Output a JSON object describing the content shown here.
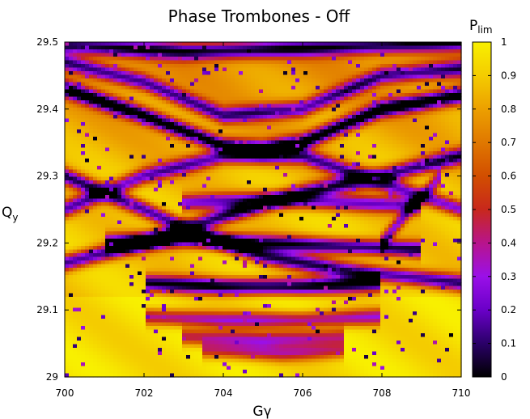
{
  "chart_data": {
    "type": "heatmap",
    "title": "Phase Trombones - Off",
    "xlabel": "Gγ",
    "ylabel": {
      "main": "Q",
      "sub": "y"
    },
    "xlim": [
      700,
      710
    ],
    "ylim": [
      29.0,
      29.5
    ],
    "x_ticks": [
      "700",
      "702",
      "704",
      "706",
      "708",
      "710"
    ],
    "y_ticks": [
      "29",
      "29.1",
      "29.2",
      "29.3",
      "29.4",
      "29.5"
    ],
    "colorbar": {
      "label": {
        "main": "P",
        "sub": "lim"
      },
      "range": [
        0,
        1
      ],
      "ticks": [
        "0",
        "0.1",
        "0.2",
        "0.3",
        "0.4",
        "0.5",
        "0.6",
        "0.7",
        "0.8",
        "0.9",
        "1"
      ],
      "palette": [
        "#000000",
        "#2a0068",
        "#6a00c8",
        "#9a10e8",
        "#b8148c",
        "#c8281c",
        "#d24e00",
        "#e07800",
        "#eca000",
        "#f4cc00",
        "#f8f000"
      ]
    },
    "grid": false,
    "legend": "colorbar-right",
    "background_value": 0.9,
    "resonance_lines": [
      {
        "name": "resonance-upper-arc",
        "depth": 0.95,
        "points": [
          [
            700,
            29.43
          ],
          [
            702,
            29.39
          ],
          [
            704,
            29.345
          ],
          [
            705,
            29.34
          ],
          [
            706,
            29.35
          ],
          [
            708,
            29.4
          ],
          [
            710,
            29.42
          ]
        ]
      },
      {
        "name": "resonance-upper-arc-2",
        "depth": 0.7,
        "points": [
          [
            700,
            29.47
          ],
          [
            702,
            29.44
          ],
          [
            704,
            29.39
          ],
          [
            706,
            29.4
          ],
          [
            708,
            29.45
          ],
          [
            710,
            29.46
          ]
        ]
      },
      {
        "name": "resonance-top-band",
        "depth": 0.75,
        "points": [
          [
            700,
            29.495
          ],
          [
            703,
            29.485
          ],
          [
            706,
            29.49
          ],
          [
            710,
            29.5
          ]
        ]
      },
      {
        "name": "resonance-crossing-a",
        "depth": 0.8,
        "points": [
          [
            700,
            29.3
          ],
          [
            702,
            29.25
          ],
          [
            703.5,
            29.21
          ],
          [
            705,
            29.18
          ],
          [
            707,
            29.16
          ],
          [
            710,
            29.14
          ]
        ]
      },
      {
        "name": "resonance-crossing-b",
        "depth": 0.8,
        "points": [
          [
            700,
            29.17
          ],
          [
            702,
            29.2
          ],
          [
            704,
            29.24
          ],
          [
            706,
            29.275
          ],
          [
            708,
            29.3
          ],
          [
            710,
            29.33
          ]
        ]
      },
      {
        "name": "resonance-crossing-c",
        "depth": 0.7,
        "points": [
          [
            700,
            29.25
          ],
          [
            702,
            29.3
          ],
          [
            704,
            29.33
          ],
          [
            706,
            29.33
          ],
          [
            708,
            29.29
          ],
          [
            710,
            29.25
          ]
        ]
      },
      {
        "name": "resonance-mid-band-1",
        "depth": 0.85,
        "points": [
          [
            701,
            29.2
          ],
          [
            703,
            29.205
          ],
          [
            705,
            29.2
          ],
          [
            707,
            29.195
          ],
          [
            709,
            29.19
          ]
        ]
      },
      {
        "name": "resonance-mid-band-2",
        "depth": 0.9,
        "points": [
          [
            702,
            29.14
          ],
          [
            704,
            29.135
          ],
          [
            706,
            29.135
          ],
          [
            708,
            29.14
          ]
        ]
      },
      {
        "name": "resonance-mid-band-3",
        "depth": 0.65,
        "points": [
          [
            703,
            29.26
          ],
          [
            705,
            29.265
          ],
          [
            707,
            29.26
          ],
          [
            709,
            29.255
          ]
        ]
      },
      {
        "name": "resonance-lower-band-1",
        "depth": 0.6,
        "points": [
          [
            702,
            29.09
          ],
          [
            704,
            29.085
          ],
          [
            706,
            29.085
          ],
          [
            708,
            29.09
          ]
        ]
      },
      {
        "name": "resonance-lower-band-2",
        "depth": 0.55,
        "points": [
          [
            703,
            29.06
          ],
          [
            705,
            29.055
          ],
          [
            707,
            29.06
          ]
        ]
      },
      {
        "name": "resonance-lower-band-3",
        "depth": 0.5,
        "points": [
          [
            703.5,
            29.04
          ],
          [
            705.5,
            29.035
          ],
          [
            707,
            29.04
          ]
        ]
      },
      {
        "name": "resonance-low-sweep",
        "depth": 0.6,
        "points": [
          [
            708,
            29.2
          ],
          [
            708.7,
            29.25
          ],
          [
            709.5,
            29.3
          ]
        ]
      }
    ]
  }
}
